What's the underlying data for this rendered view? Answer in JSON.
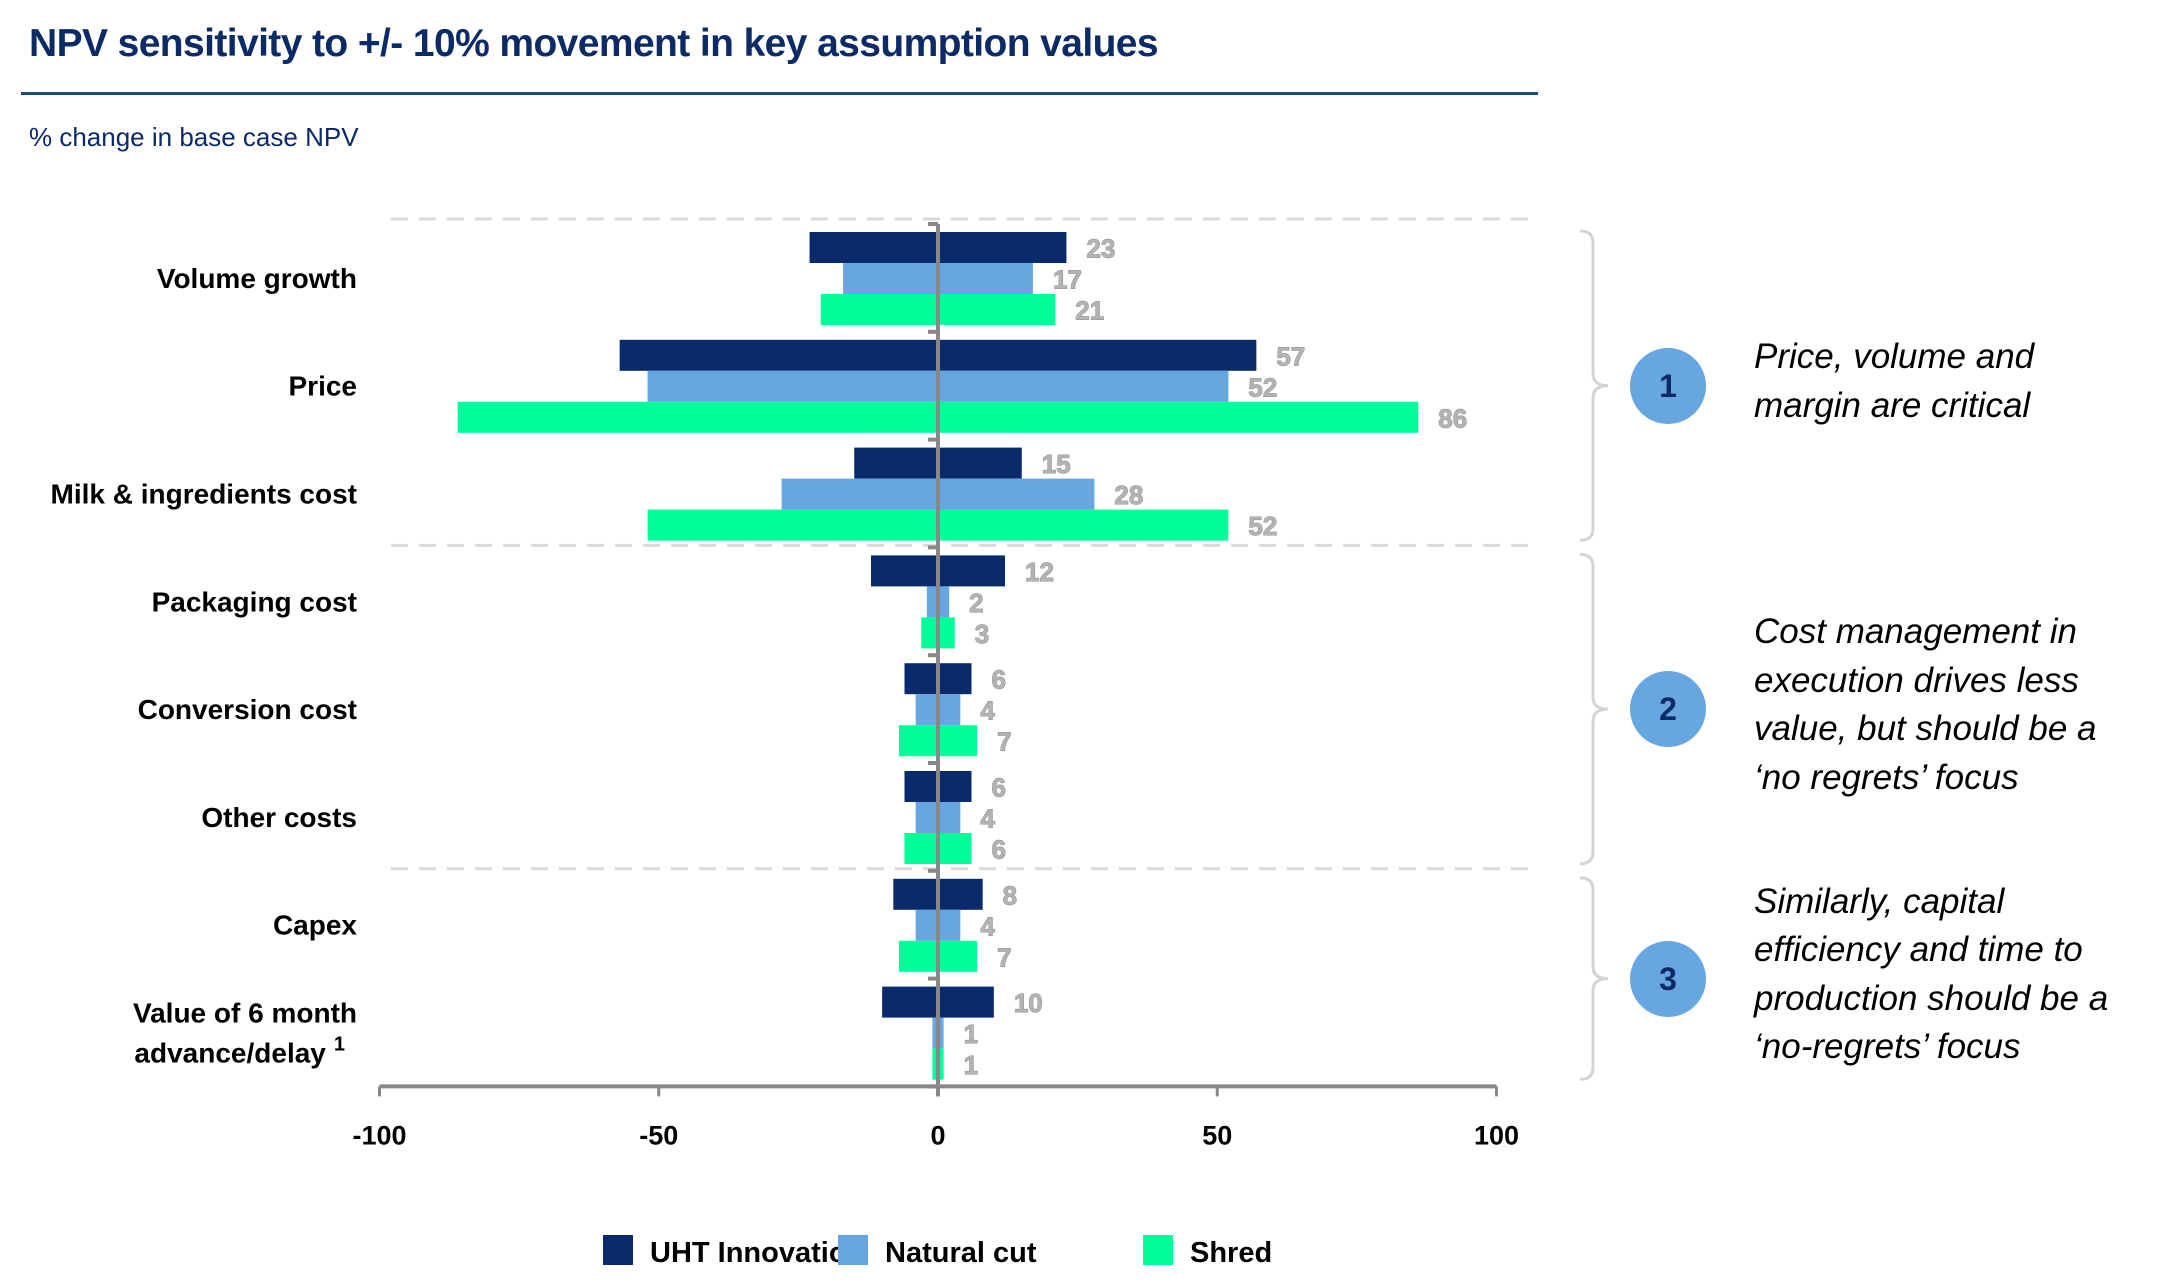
{
  "header": {
    "title": "NPV sensitivity to +/- 10% movement in key assumption values",
    "subtitle": "% change in base case NPV"
  },
  "chart_data": {
    "type": "bar",
    "orientation": "horizontal-tornado",
    "title": "NPV sensitivity to +/- 10% movement in key assumption values",
    "ylabel": "% change in base case NPV",
    "xlim": [
      -100,
      100
    ],
    "xticks": [
      "-100",
      "-50",
      "0",
      "50",
      "100"
    ],
    "xtick_values": [
      -100,
      -50,
      0,
      50,
      100
    ],
    "categories": [
      "Volume growth",
      "Price",
      "Milk & ingredients cost",
      "Packaging cost",
      "Conversion cost",
      "Other costs",
      "Capex",
      "Value of 6 month advance/delay"
    ],
    "category_label_lines": [
      [
        "Volume growth"
      ],
      [
        "Price"
      ],
      [
        "Milk & ingredients cost"
      ],
      [
        "Packaging cost"
      ],
      [
        "Conversion cost"
      ],
      [
        "Other costs"
      ],
      [
        "Capex"
      ],
      [
        "Value of 6 month",
        "advance/delay"
      ]
    ],
    "category_footnotes": [
      "",
      "",
      "",
      "",
      "",
      "",
      "",
      "1"
    ],
    "note": "Bars extend symmetrically from -value to +value; label shows magnitude",
    "series": [
      {
        "name": "UHT Innovation",
        "color": "#0a2b6b",
        "values": [
          23,
          57,
          15,
          12,
          6,
          6,
          8,
          10
        ]
      },
      {
        "name": "Natural cut",
        "color": "#67a6e0",
        "values": [
          17,
          52,
          28,
          2,
          4,
          4,
          4,
          1
        ]
      },
      {
        "name": "Shred",
        "color": "#00ff99",
        "values": [
          21,
          86,
          52,
          3,
          7,
          6,
          7,
          1
        ]
      }
    ],
    "group_separators_after_category_index": [
      2,
      5
    ],
    "legend": {
      "placement": "bottom-center"
    },
    "grid": false
  },
  "annotations": [
    {
      "number": "1",
      "text": "Price, volume and margin are critical",
      "lines": [
        "Price, volume and",
        "margin are critical"
      ],
      "categories_from": 0,
      "categories_to": 2
    },
    {
      "number": "2",
      "text": "Cost management in execution drives less value, but should be a ‘no regrets’ focus",
      "lines": [
        "Cost management in",
        "execution drives less",
        "value, but should be a",
        "‘no regrets’ focus"
      ],
      "categories_from": 3,
      "categories_to": 5
    },
    {
      "number": "3",
      "text": "Similarly, capital efficiency and time to production should be a ‘no-regrets’ focus",
      "lines": [
        "Similarly, capital",
        "efficiency and time to",
        "production should be a",
        "‘no-regrets’ focus"
      ],
      "categories_from": 6,
      "categories_to": 7
    }
  ],
  "colors": {
    "title": "#0b2a66",
    "rule": "#1f4a7a",
    "axis": "#888888",
    "separator": "#d9d9d9",
    "brace": "#d4d4d4",
    "badge": "#67a6e0",
    "badge_text": "#0b2a66"
  }
}
